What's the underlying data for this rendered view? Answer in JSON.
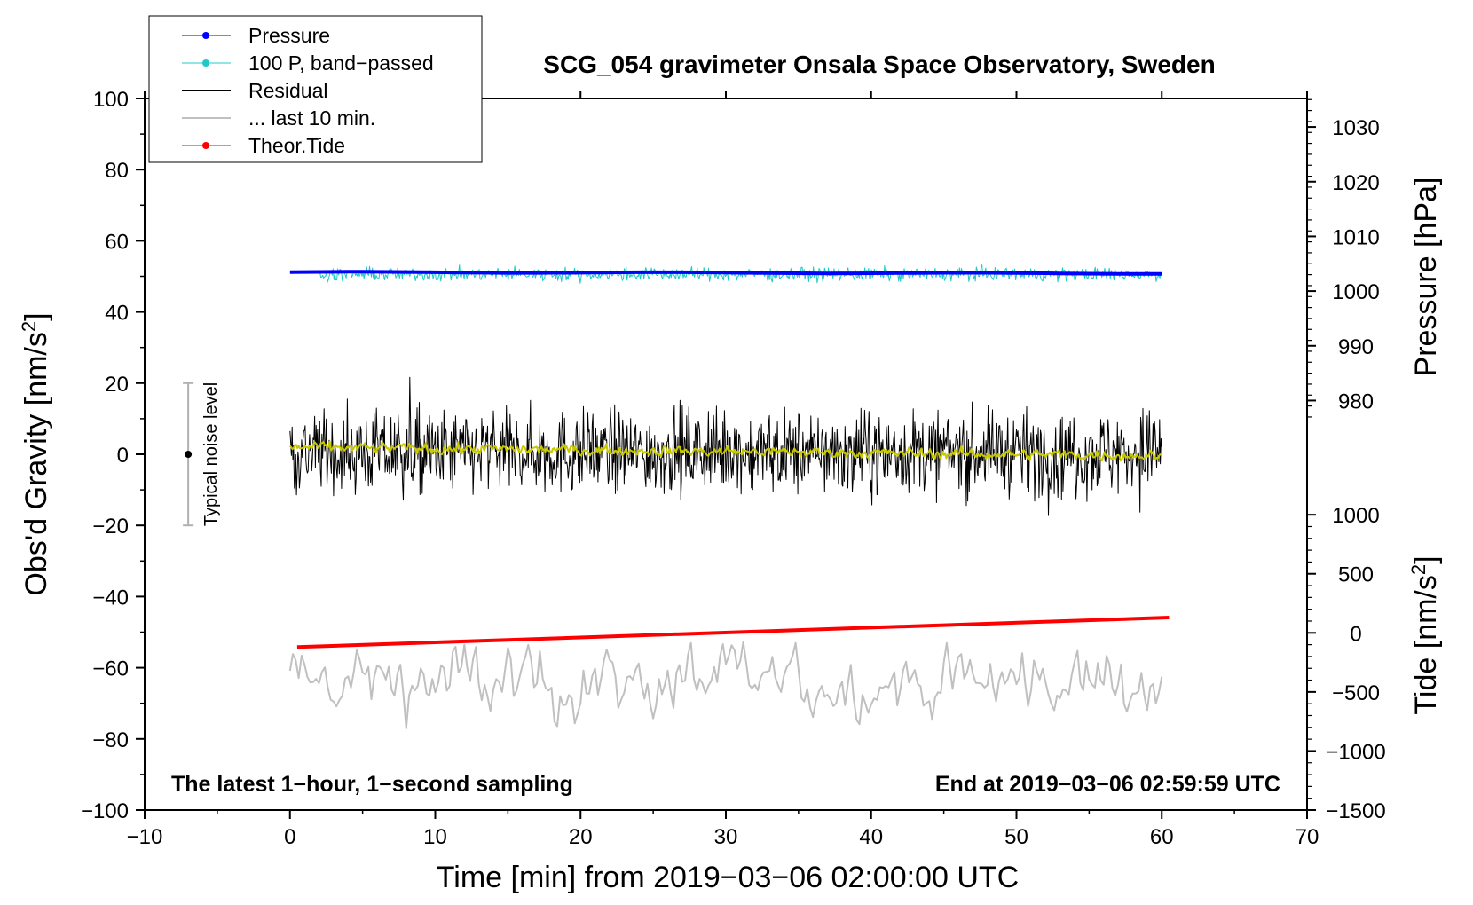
{
  "chart_data": {
    "type": "line",
    "title": "SCG_054 gravimeter Onsala Space Observatory, Sweden",
    "xlabel": "Time [min] from 2019−03−06 02:00:00 UTC",
    "ylabel_main": "Obs'd Gravity [nm/s",
    "ylabel_main_sup": "2",
    "ylabel_main_tail": "]",
    "ylabel_pressure": "Pressure [hPa]",
    "ylabel_tide": "Tide [nm/s",
    "ylabel_tide_sup": "2",
    "ylabel_tide_tail": "]",
    "xlim": [
      -10,
      70
    ],
    "ylim": [
      -100,
      100
    ],
    "x_ticks": [
      "−10",
      "0",
      "10",
      "20",
      "30",
      "40",
      "50",
      "60",
      "70"
    ],
    "x_tick_values": [
      -10,
      0,
      10,
      20,
      30,
      40,
      50,
      60,
      70
    ],
    "y_ticks": [
      "−100",
      "−80",
      "−60",
      "−40",
      "−20",
      "0",
      "20",
      "40",
      "60",
      "80",
      "100"
    ],
    "y_tick_values": [
      -100,
      -80,
      -60,
      -40,
      -20,
      0,
      20,
      40,
      60,
      80,
      100
    ],
    "pressure_ticks": [
      "1030",
      "1020",
      "1010",
      "1000",
      "990",
      "980"
    ],
    "pressure_tick_values": [
      1030,
      1020,
      1010,
      1000,
      990,
      980
    ],
    "pressure_axis_map": {
      "value_1030_at_gravity": 92,
      "value_980_at_gravity": 15.1
    },
    "tide_ticks": [
      "1000",
      "500",
      "0",
      "−500",
      "−1000",
      "−1500"
    ],
    "tide_tick_values": [
      1000,
      500,
      0,
      -500,
      -1000,
      -1500
    ],
    "tide_axis_map": {
      "value_1000_at_gravity": -17,
      "value_minus1500_at_gravity": -100
    },
    "series": [
      {
        "name": "Pressure",
        "color": "#0000ff",
        "description_hpa": 1003,
        "gravity_level": 51.2,
        "x_range": [
          0,
          60
        ]
      },
      {
        "name": "100 P, band−passed",
        "color": "#20c8c8",
        "center": 50.6,
        "amplitude": 2.2,
        "x_range": [
          2,
          60
        ]
      },
      {
        "name": "Residual",
        "color": "#000000",
        "center": 0.5,
        "amplitude": 12,
        "x_range": [
          0,
          60
        ]
      },
      {
        "name": "... last 10 min.",
        "color": "#c0c0c0",
        "center": -64,
        "amplitude": 9,
        "x_range": [
          0,
          60
        ]
      },
      {
        "name": "Theor.Tide",
        "color": "#ff0000",
        "tide_start": -120,
        "tide_end": 130,
        "x_range": [
          0,
          60.5
        ]
      },
      {
        "name": "smoothed residual",
        "color": "#c8c800",
        "center": 0.4,
        "amplitude": 1.5,
        "x_range": [
          0,
          60
        ]
      }
    ],
    "annotations": {
      "left_bottom": "The latest 1−hour, 1−second sampling",
      "right_bottom": "End at 2019−03−06 02:59:59 UTC",
      "noise_label": "Typical noise level",
      "noise_bar": {
        "x": -7,
        "low": -20,
        "high": 20,
        "center": 0
      }
    },
    "legend": [
      {
        "label": "Pressure",
        "color": "#0000ff",
        "marker": true,
        "width": 1
      },
      {
        "label": "100 P, band−passed",
        "color": "#20c8c8",
        "marker": true,
        "width": 1
      },
      {
        "label": "Residual",
        "color": "#000000",
        "marker": false,
        "width": 2
      },
      {
        "label": "... last 10 min.",
        "color": "#c0c0c0",
        "marker": false,
        "width": 2
      },
      {
        "label": "Theor.Tide",
        "color": "#ff0000",
        "marker": true,
        "width": 1
      }
    ]
  }
}
